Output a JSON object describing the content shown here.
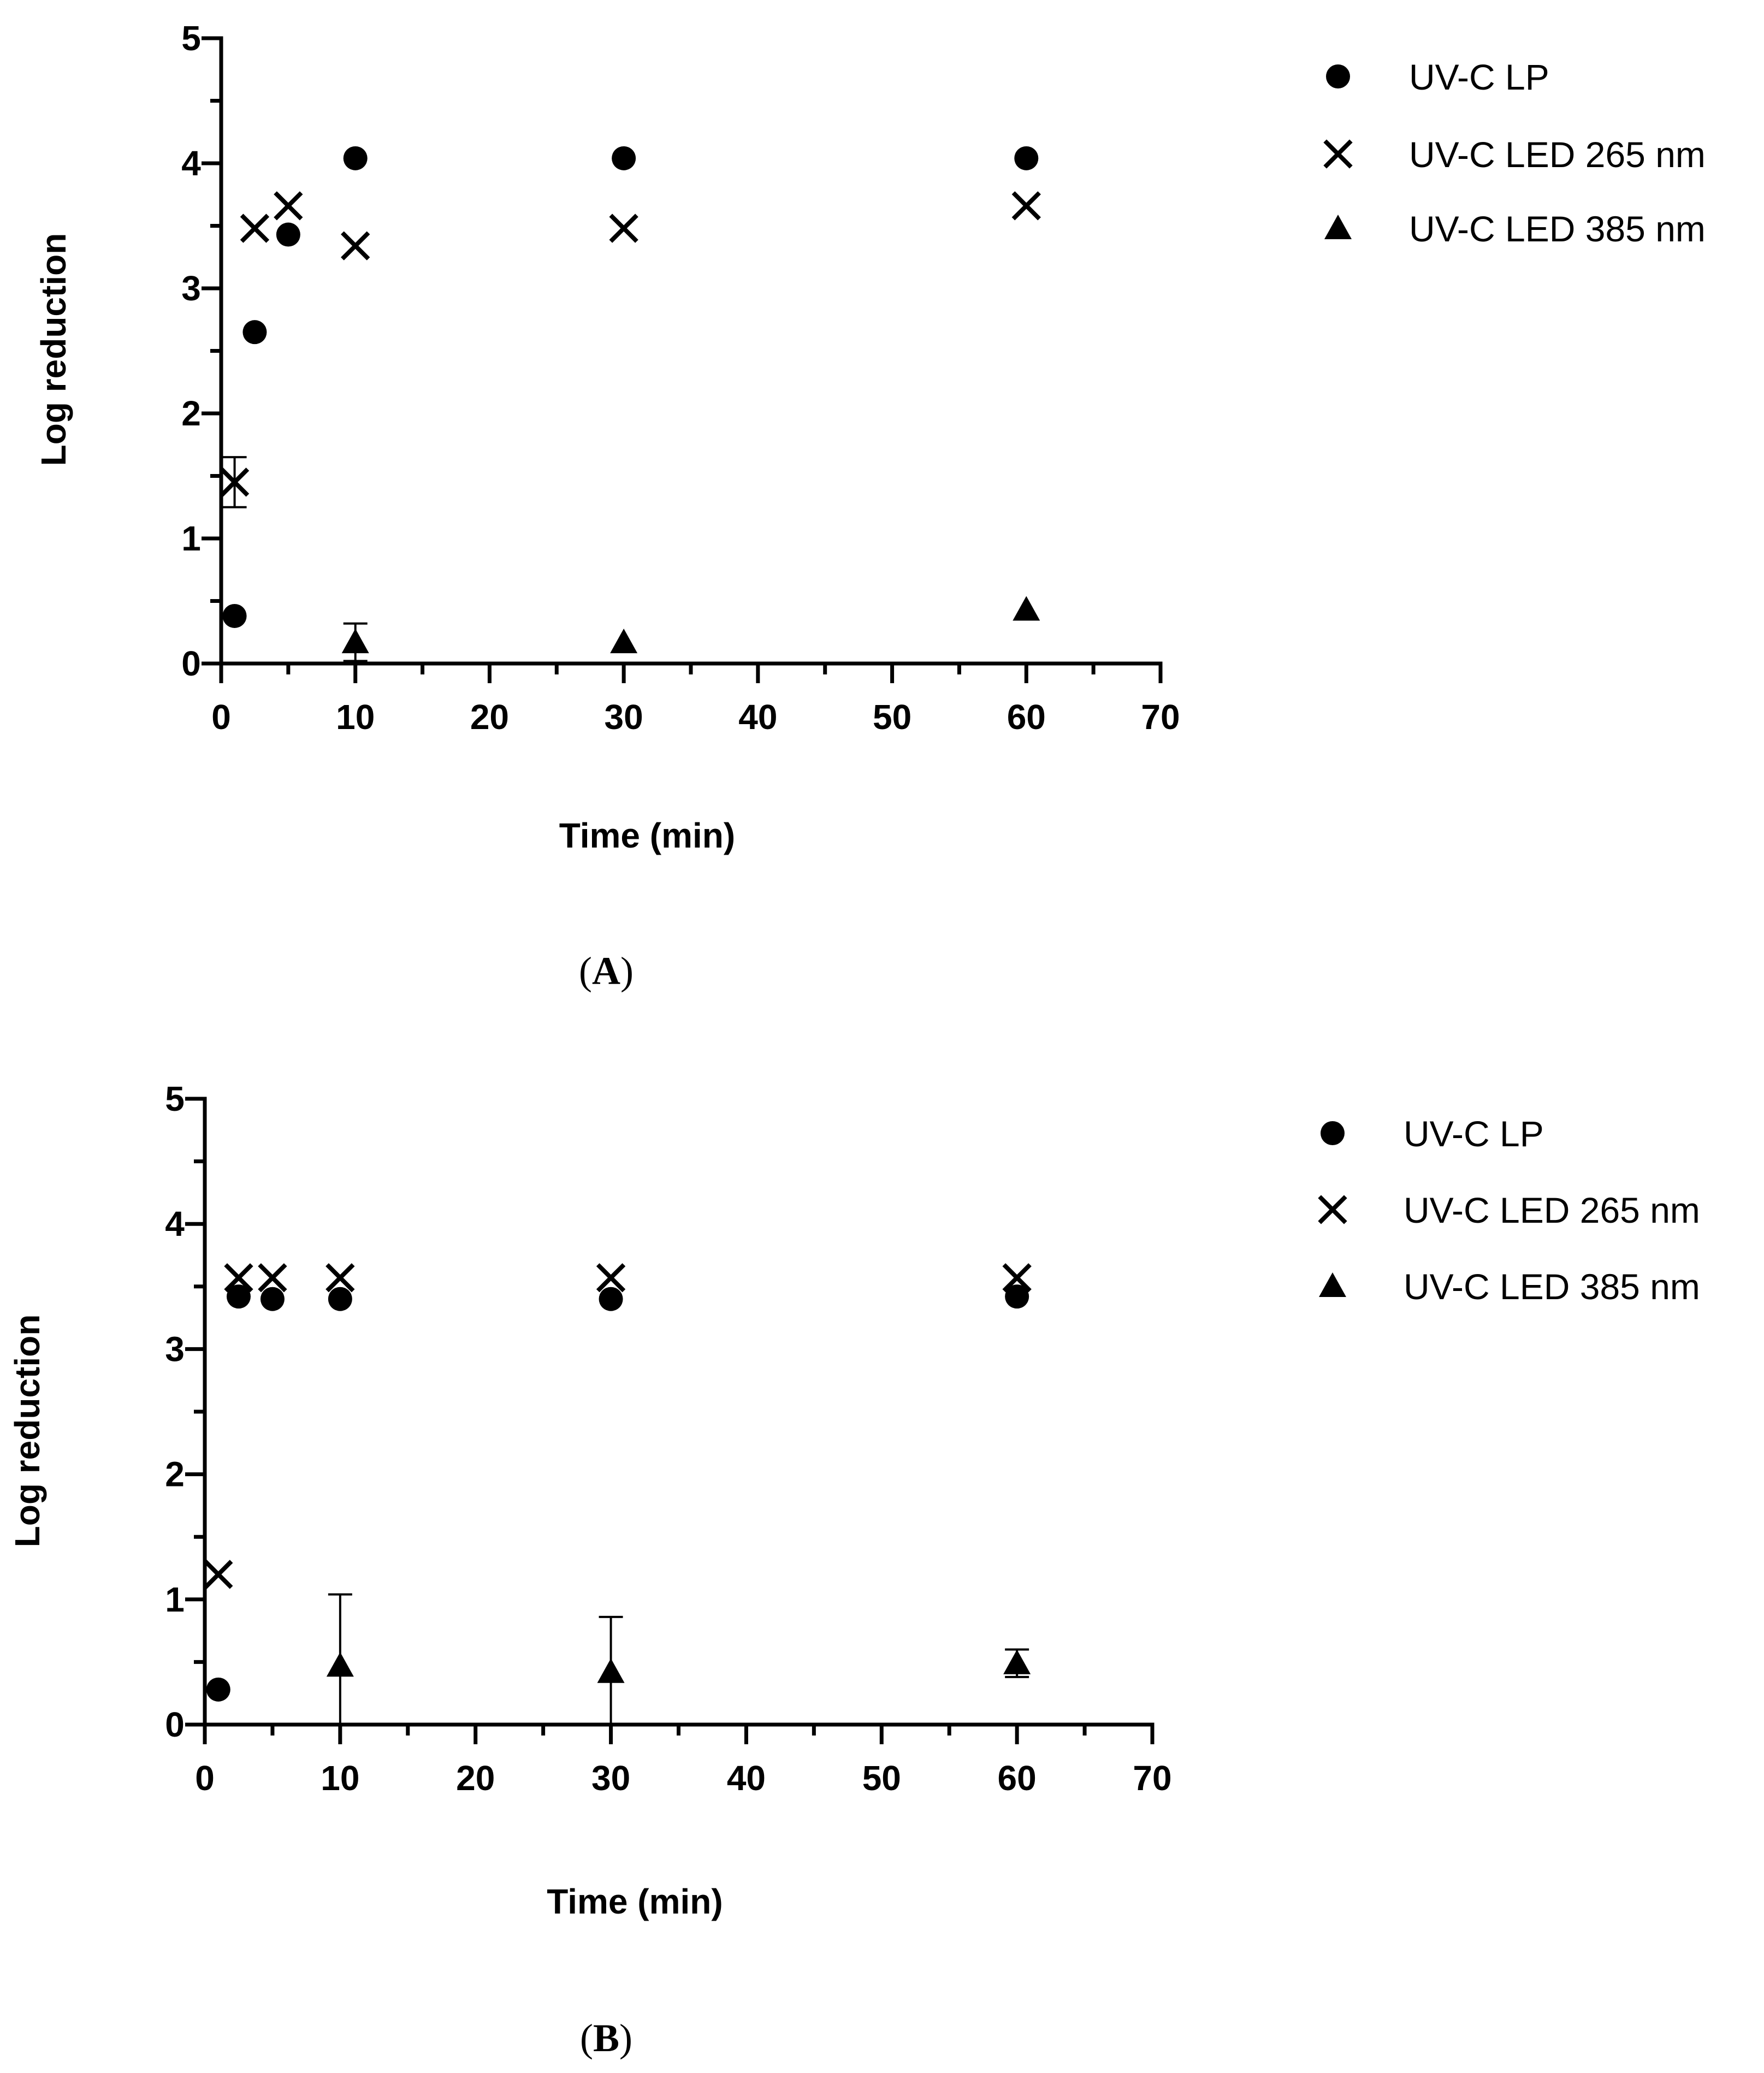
{
  "chart_data": [
    {
      "type": "scatter",
      "panel": "A",
      "xlabel": "Time (min)",
      "ylabel": "Log reduction",
      "xlim": [
        0,
        70
      ],
      "ylim": [
        0,
        5
      ],
      "xticks": [
        0,
        10,
        20,
        30,
        40,
        50,
        60,
        70
      ],
      "yticks": [
        0,
        1,
        2,
        3,
        4,
        5
      ],
      "grid": false,
      "legend_position": "right",
      "series": [
        {
          "name": "UV-C LP",
          "marker": "circle",
          "points": [
            {
              "x": 1,
              "y": 0.38
            },
            {
              "x": 2.5,
              "y": 2.65
            },
            {
              "x": 5,
              "y": 3.43
            },
            {
              "x": 10,
              "y": 4.04
            },
            {
              "x": 30,
              "y": 4.04
            },
            {
              "x": 60,
              "y": 4.04
            }
          ]
        },
        {
          "name": "UV-C LED 265 nm",
          "marker": "x",
          "points": [
            {
              "x": 1,
              "y": 1.45,
              "err": 0.2
            },
            {
              "x": 2.5,
              "y": 3.48
            },
            {
              "x": 5,
              "y": 3.66
            },
            {
              "x": 10,
              "y": 3.34
            },
            {
              "x": 30,
              "y": 3.48
            },
            {
              "x": 60,
              "y": 3.66
            }
          ]
        },
        {
          "name": "UV-C LED 385 nm",
          "marker": "triangle",
          "points": [
            {
              "x": 10,
              "y": 0.17,
              "err": 0.15
            },
            {
              "x": 30,
              "y": 0.17
            },
            {
              "x": 60,
              "y": 0.43
            }
          ]
        }
      ]
    },
    {
      "type": "scatter",
      "panel": "B",
      "xlabel": "Time (min)",
      "ylabel": "Log reduction",
      "xlim": [
        0,
        70
      ],
      "ylim": [
        0,
        5
      ],
      "xticks": [
        0,
        10,
        20,
        30,
        40,
        50,
        60,
        70
      ],
      "yticks": [
        0,
        1,
        2,
        3,
        4,
        5
      ],
      "grid": false,
      "legend_position": "right",
      "series": [
        {
          "name": "UV-C LP",
          "marker": "circle",
          "points": [
            {
              "x": 1,
              "y": 0.28
            },
            {
              "x": 2.5,
              "y": 3.42
            },
            {
              "x": 5,
              "y": 3.4
            },
            {
              "x": 10,
              "y": 3.4
            },
            {
              "x": 30,
              "y": 3.4
            },
            {
              "x": 60,
              "y": 3.42
            }
          ]
        },
        {
          "name": "UV-C LED 265 nm",
          "marker": "x",
          "points": [
            {
              "x": 1,
              "y": 1.2
            },
            {
              "x": 2.5,
              "y": 3.57
            },
            {
              "x": 5,
              "y": 3.57
            },
            {
              "x": 10,
              "y": 3.57
            },
            {
              "x": 30,
              "y": 3.57
            },
            {
              "x": 60,
              "y": 3.57
            }
          ]
        },
        {
          "name": "UV-C LED 385 nm",
          "marker": "triangle",
          "points": [
            {
              "x": 10,
              "y": 0.47,
              "err": 0.57
            },
            {
              "x": 30,
              "y": 0.42,
              "err": 0.44
            },
            {
              "x": 60,
              "y": 0.49,
              "err": 0.11
            }
          ]
        }
      ]
    }
  ],
  "panel_labels": {
    "a": {
      "open": "(",
      "letter": "A",
      "close": ")"
    },
    "b": {
      "open": "(",
      "letter": "B",
      "close": ")"
    }
  }
}
